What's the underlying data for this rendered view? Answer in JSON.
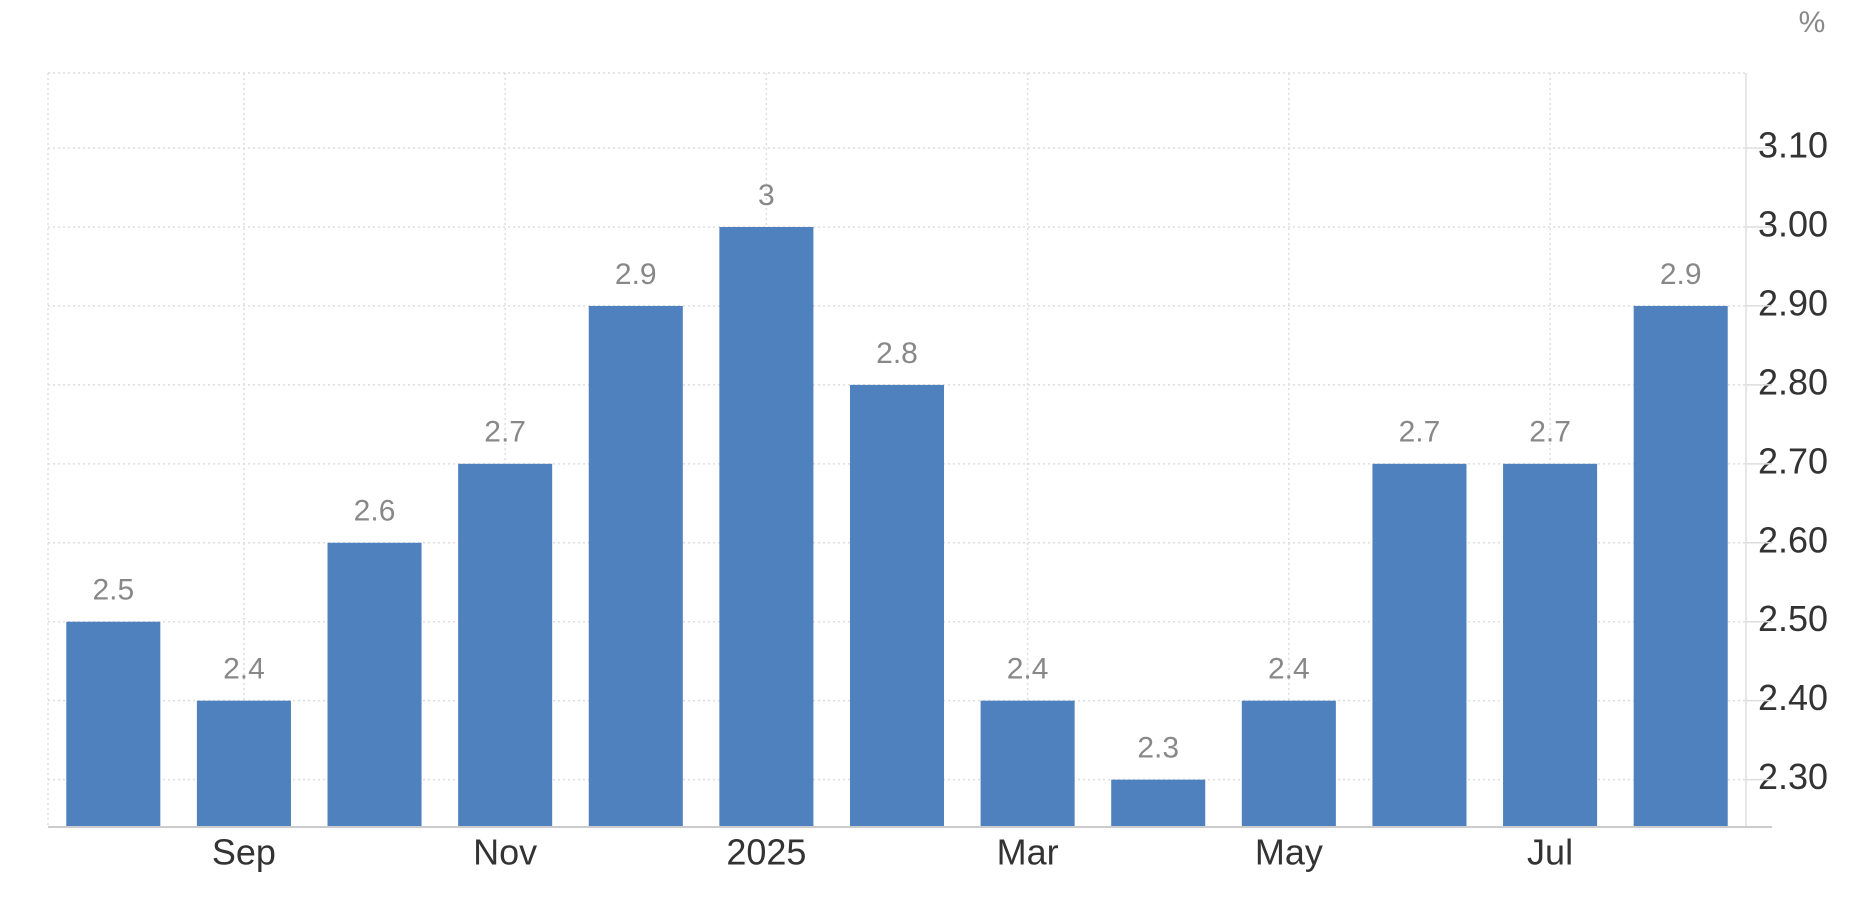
{
  "chart_data": {
    "type": "bar",
    "unit": "%",
    "categories": [
      null,
      "Sep",
      null,
      "Nov",
      null,
      "2025",
      null,
      "Mar",
      null,
      "May",
      null,
      "Jul",
      null
    ],
    "values": [
      2.5,
      2.4,
      2.6,
      2.7,
      2.9,
      3,
      2.8,
      2.4,
      2.3,
      2.4,
      2.7,
      2.7,
      2.9
    ],
    "color": "#4e81bd",
    "ylim": [
      2.24,
      3.195
    ],
    "yticks": [
      {
        "value": 2.3,
        "label": "2.30"
      },
      {
        "value": 2.4,
        "label": "2.40"
      },
      {
        "value": 2.5,
        "label": "2.50"
      },
      {
        "value": 2.6,
        "label": "2.60"
      },
      {
        "value": 2.7,
        "label": "2.70"
      },
      {
        "value": 2.8,
        "label": "2.80"
      },
      {
        "value": 2.9,
        "label": "2.90"
      },
      {
        "value": 3.0,
        "label": "3.00"
      },
      {
        "value": 3.1,
        "label": "3.10"
      }
    ],
    "grid": true
  }
}
